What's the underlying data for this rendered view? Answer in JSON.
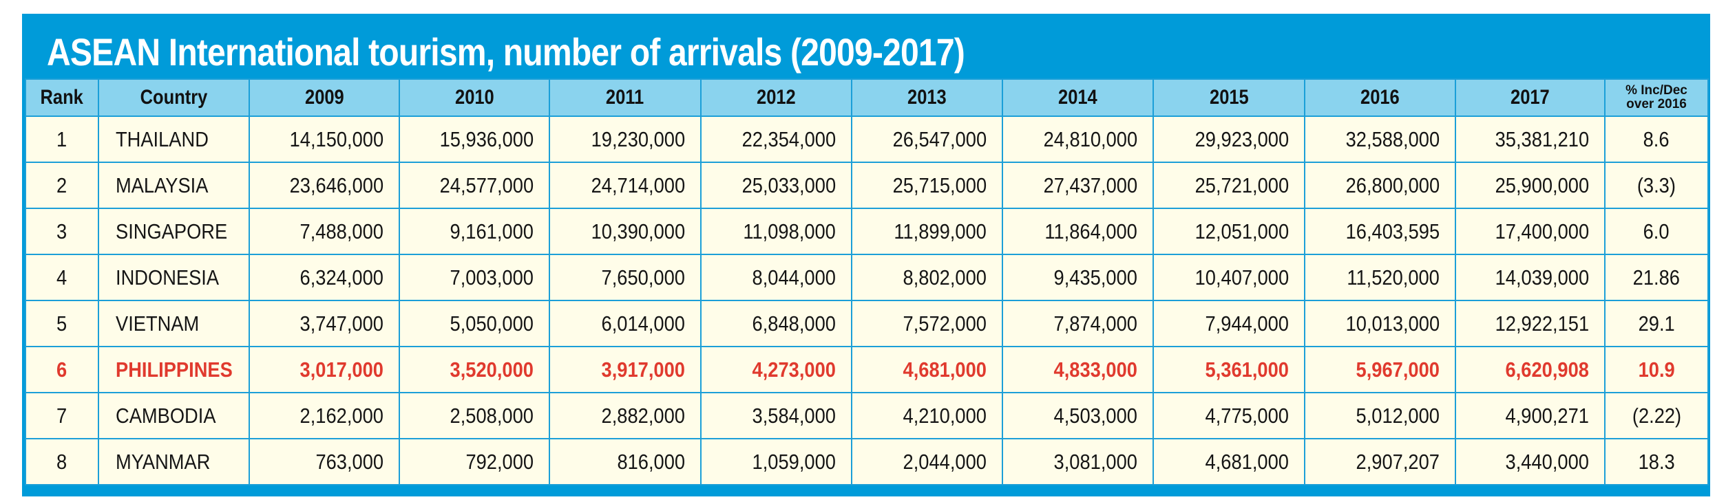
{
  "title": "ASEAN International tourism, number of arrivals (2009-2017)",
  "chart_data": {
    "type": "table",
    "title": "ASEAN International tourism, number of arrivals (2009-2017)",
    "columns": [
      "Rank",
      "Country",
      "2009",
      "2010",
      "2011",
      "2012",
      "2013",
      "2014",
      "2015",
      "2016",
      "2017",
      "% Inc/Dec over 2016"
    ],
    "header": {
      "rank": "Rank",
      "country": "Country",
      "years": [
        "2009",
        "2010",
        "2011",
        "2012",
        "2013",
        "2014",
        "2015",
        "2016",
        "2017"
      ],
      "pct_line1": "% Inc/Dec",
      "pct_line2": "over 2016"
    },
    "highlight_color": "#e03a2e",
    "highlight_row": "PHILIPPINES",
    "rows": [
      {
        "rank": "1",
        "country": "THAILAND",
        "values": [
          "14,150,000",
          "15,936,000",
          "19,230,000",
          "22,354,000",
          "26,547,000",
          "24,810,000",
          "29,923,000",
          "32,588,000",
          "35,381,210"
        ],
        "change": "8.6"
      },
      {
        "rank": "2",
        "country": "MALAYSIA",
        "values": [
          "23,646,000",
          "24,577,000",
          "24,714,000",
          "25,033,000",
          "25,715,000",
          "27,437,000",
          "25,721,000",
          "26,800,000",
          "25,900,000"
        ],
        "change": "(3.3)"
      },
      {
        "rank": "3",
        "country": "SINGAPORE",
        "values": [
          "7,488,000",
          "9,161,000",
          "10,390,000",
          "11,098,000",
          "11,899,000",
          "11,864,000",
          "12,051,000",
          "16,403,595",
          "17,400,000"
        ],
        "change": "6.0"
      },
      {
        "rank": "4",
        "country": "INDONESIA",
        "values": [
          "6,324,000",
          "7,003,000",
          "7,650,000",
          "8,044,000",
          "8,802,000",
          "9,435,000",
          "10,407,000",
          "11,520,000",
          "14,039,000"
        ],
        "change": "21.86"
      },
      {
        "rank": "5",
        "country": "VIETNAM",
        "values": [
          "3,747,000",
          "5,050,000",
          "6,014,000",
          "6,848,000",
          "7,572,000",
          "7,874,000",
          "7,944,000",
          "10,013,000",
          "12,922,151"
        ],
        "change": "29.1"
      },
      {
        "rank": "6",
        "country": "PHILIPPINES",
        "values": [
          "3,017,000",
          "3,520,000",
          "3,917,000",
          "4,273,000",
          "4,681,000",
          "4,833,000",
          "5,361,000",
          "5,967,000",
          "6,620,908"
        ],
        "change": "10.9"
      },
      {
        "rank": "7",
        "country": "CAMBODIA",
        "values": [
          "2,162,000",
          "2,508,000",
          "2,882,000",
          "3,584,000",
          "4,210,000",
          "4,503,000",
          "4,775,000",
          "5,012,000",
          "4,900,271"
        ],
        "change": "(2.22)"
      },
      {
        "rank": "8",
        "country": "MYANMAR",
        "values": [
          "763,000",
          "792,000",
          "816,000",
          "1,059,000",
          "2,044,000",
          "3,081,000",
          "4,681,000",
          "2,907,207",
          "3,440,000"
        ],
        "change": "18.3"
      }
    ]
  }
}
